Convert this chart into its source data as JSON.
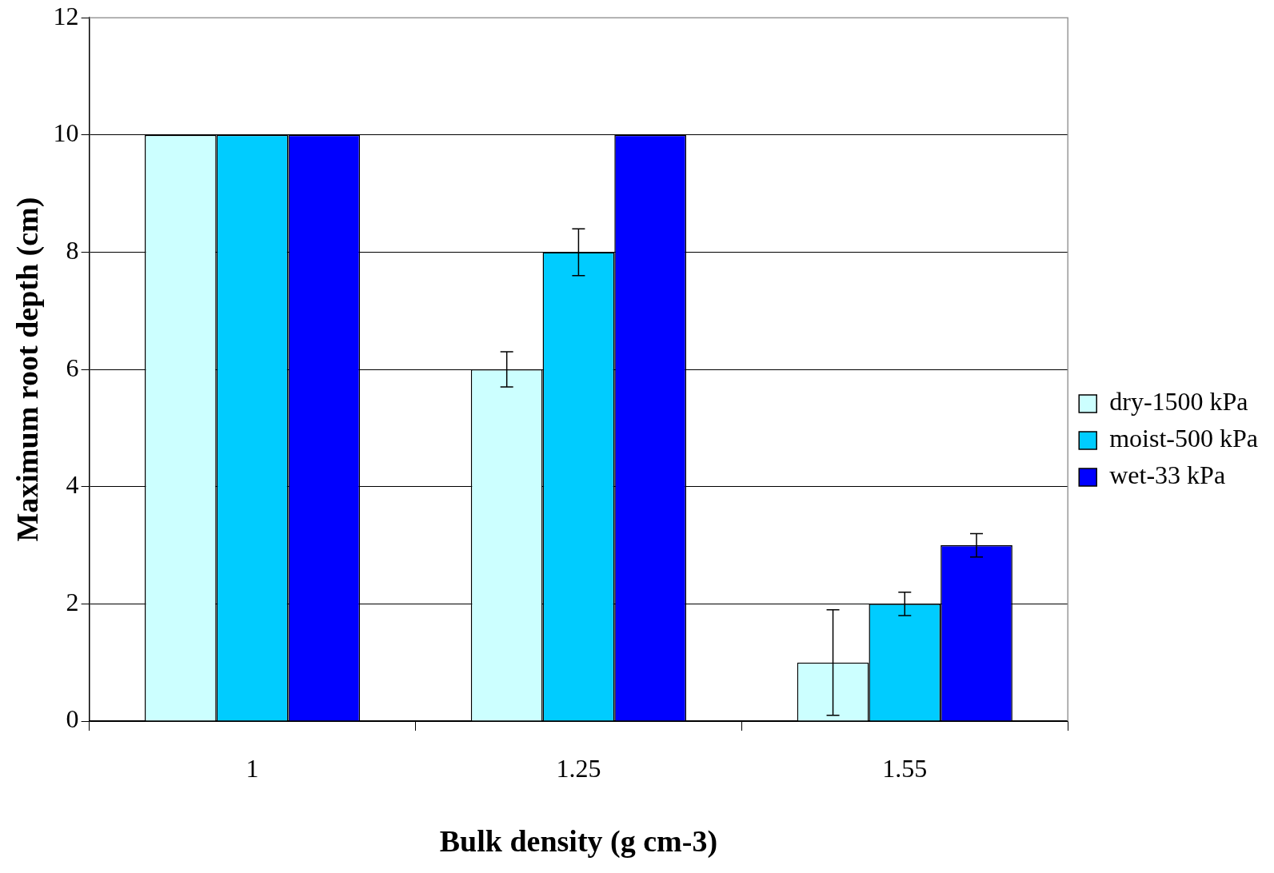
{
  "chart_data": {
    "type": "bar",
    "xlabel": "Bulk density (g cm-3)",
    "ylabel": "Maximum root depth (cm)",
    "categories": [
      "1",
      "1.25",
      "1.55"
    ],
    "series": [
      {
        "name": "dry-1500 kPa",
        "color": "#ccffff",
        "values": [
          10,
          6,
          1
        ],
        "errors": [
          null,
          0.3,
          0.9
        ]
      },
      {
        "name": "moist-500 kPa",
        "color": "#00ccff",
        "values": [
          10,
          8,
          2
        ],
        "errors": [
          null,
          0.4,
          0.2
        ]
      },
      {
        "name": "wet-33 kPa",
        "color": "#0000ff",
        "values": [
          10,
          10,
          3
        ],
        "errors": [
          null,
          null,
          0.2
        ]
      }
    ],
    "ylim": [
      0,
      12
    ],
    "yticks": [
      0,
      2,
      4,
      6,
      8,
      10,
      12
    ],
    "grid": "y",
    "legend": "right"
  }
}
